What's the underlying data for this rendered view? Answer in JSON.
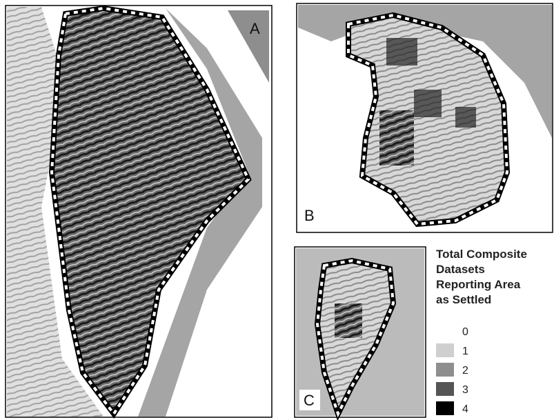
{
  "panels": [
    {
      "label": "A"
    },
    {
      "label": "B"
    },
    {
      "label": "C"
    }
  ],
  "legend": {
    "title": [
      "Total Composite",
      "Datasets",
      "Reporting Area",
      "as Settled"
    ],
    "items": [
      {
        "label": "0",
        "color": "#ffffff"
      },
      {
        "label": "1",
        "color": "#cfcfcf"
      },
      {
        "label": "2",
        "color": "#8e8e8e"
      },
      {
        "label": "3",
        "color": "#555555"
      },
      {
        "label": "4",
        "color": "#000000"
      }
    ]
  }
}
